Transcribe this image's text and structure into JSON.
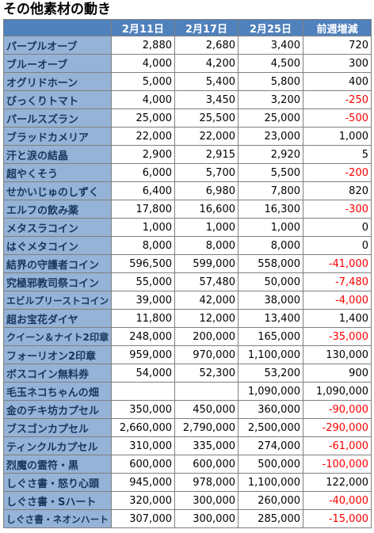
{
  "title": "その他素材の動き",
  "table": {
    "headers": [
      "2月11日",
      "2月17日",
      "2月25日",
      "前週増減"
    ],
    "rows": [
      [
        "パープルオーブ",
        "2,880",
        "2,680",
        "3,400",
        "720"
      ],
      [
        "ブルーオーブ",
        "4,000",
        "4,200",
        "4,500",
        "300"
      ],
      [
        "オグリドホーン",
        "5,000",
        "5,400",
        "5,800",
        "400"
      ],
      [
        "びっくりトマト",
        "4,000",
        "3,450",
        "3,200",
        "-250"
      ],
      [
        "パールスズラン",
        "25,000",
        "25,500",
        "25,000",
        "-500"
      ],
      [
        "ブラッドカメリア",
        "22,000",
        "22,000",
        "23,000",
        "1,000"
      ],
      [
        "汗と涙の結晶",
        "2,900",
        "2,915",
        "2,920",
        "5"
      ],
      [
        "超やくそう",
        "6,000",
        "5,700",
        "5,500",
        "-200"
      ],
      [
        "せかいじゅのしずく",
        "6,400",
        "6,980",
        "7,800",
        "820"
      ],
      [
        "エルフの飲み薬",
        "17,800",
        "16,600",
        "16,300",
        "-300"
      ],
      [
        "メタスラコイン",
        "1,000",
        "1,000",
        "1,000",
        "0"
      ],
      [
        "はぐメタコイン",
        "8,000",
        "8,000",
        "8,000",
        "0"
      ],
      [
        "結界の守護者コイン",
        "596,500",
        "599,000",
        "558,000",
        "-41,000"
      ],
      [
        "究極邪教司祭コイン",
        "55,000",
        "57,480",
        "50,000",
        "-7,480"
      ],
      [
        "エビルプリーストコイン",
        "39,000",
        "42,000",
        "38,000",
        "-4,000"
      ],
      [
        "超お宝花ダイヤ",
        "11,800",
        "12,000",
        "13,400",
        "1,400"
      ],
      [
        "クイーン＆ナイト2印章",
        "248,000",
        "200,000",
        "165,000",
        "-35,000"
      ],
      [
        "フォーリオン2印章",
        "959,000",
        "970,000",
        "1,100,000",
        "130,000"
      ],
      [
        "ボスコイン無料券",
        "54,000",
        "52,300",
        "53,200",
        "900"
      ],
      [
        "毛玉ネコちゃんの畑",
        null,
        null,
        "1,090,000",
        "1,090,000"
      ],
      [
        "金のチキ坊カプセル",
        "350,000",
        "450,000",
        "360,000",
        "-90,000"
      ],
      [
        "ブスゴンカプセル",
        "2,660,000",
        "2,790,000",
        "2,500,000",
        "-290,000"
      ],
      [
        "ティンクルカプセル",
        "310,000",
        "335,000",
        "274,000",
        "-61,000"
      ],
      [
        "烈魔の霊符・黒",
        "600,000",
        "600,000",
        "500,000",
        "-100,000"
      ],
      [
        "しぐさ書・怒り心頭",
        "945,000",
        "978,000",
        "1,100,000",
        "122,000"
      ],
      [
        "しぐさ書・Sハート",
        "320,000",
        "300,000",
        "260,000",
        "-40,000"
      ],
      [
        "しぐさ書・ネオンハート",
        "307,000",
        "300,000",
        "285,000",
        "-15,000"
      ]
    ]
  }
}
